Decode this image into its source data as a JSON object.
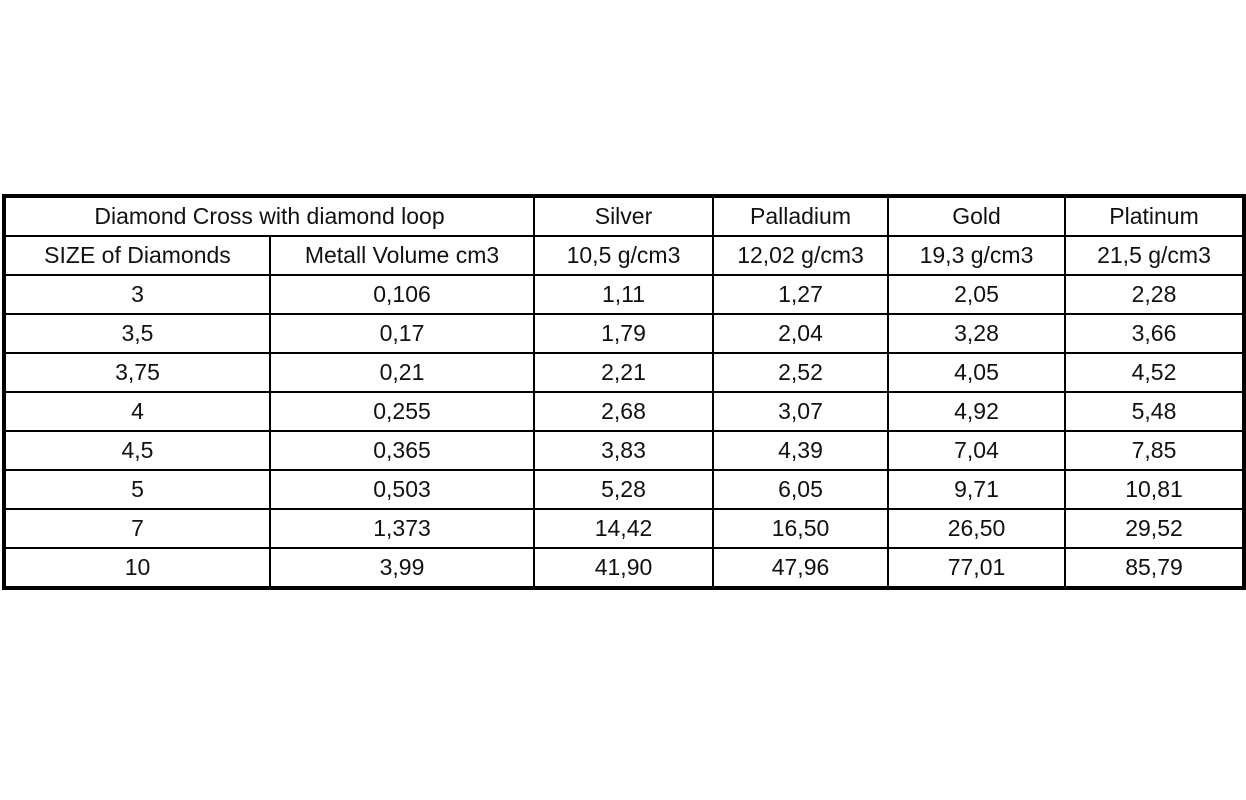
{
  "table": {
    "header_rows": [
      [
        "Diamond Cross with diamond loop",
        "Silver",
        "Palladium",
        "Gold",
        "Platinum"
      ],
      [
        "SIZE of Diamonds",
        "Metall Volume cm3",
        "10,5 g/cm3",
        "12,02 g/cm3",
        "19,3 g/cm3",
        "21,5 g/cm3"
      ]
    ],
    "rows": [
      [
        "3",
        "0,106",
        "1,11",
        "1,27",
        "2,05",
        "2,28"
      ],
      [
        "3,5",
        "0,17",
        "1,79",
        "2,04",
        "3,28",
        "3,66"
      ],
      [
        "3,75",
        "0,21",
        "2,21",
        "2,52",
        "4,05",
        "4,52"
      ],
      [
        "4",
        "0,255",
        "2,68",
        "3,07",
        "4,92",
        "5,48"
      ],
      [
        "4,5",
        "0,365",
        "3,83",
        "4,39",
        "7,04",
        "7,85"
      ],
      [
        "5",
        "0,503",
        "5,28",
        "6,05",
        "9,71",
        "10,81"
      ],
      [
        "7",
        "1,373",
        "14,42",
        "16,50",
        "26,50",
        "29,52"
      ],
      [
        "10",
        "3,99",
        "41,90",
        "47,96",
        "77,01",
        "85,79"
      ]
    ]
  }
}
